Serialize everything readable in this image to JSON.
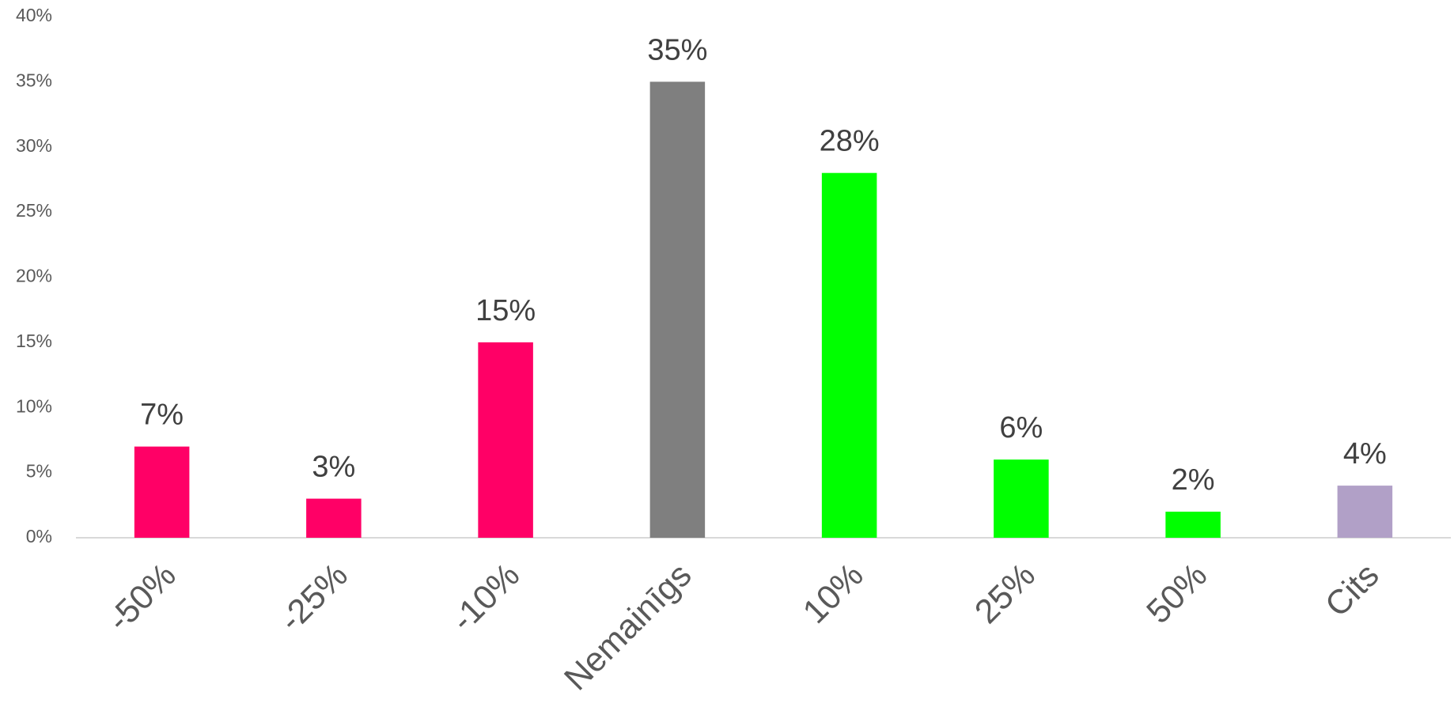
{
  "chart_data": {
    "type": "bar",
    "categories": [
      "-50%",
      "-25%",
      "-10%",
      "Nemainīgs",
      "10%",
      "25%",
      "50%",
      "Cits"
    ],
    "values": [
      7,
      3,
      15,
      35,
      28,
      6,
      2,
      4
    ],
    "value_labels": [
      "7%",
      "3%",
      "15%",
      "35%",
      "28%",
      "6%",
      "2%",
      "4%"
    ],
    "colors": [
      "#ff0066",
      "#ff0066",
      "#ff0066",
      "#7f7f7f",
      "#00ff00",
      "#00ff00",
      "#00ff00",
      "#b1a0c7"
    ],
    "ylim": [
      0,
      40
    ],
    "yticks": [
      {
        "value": 0,
        "label": "0%"
      },
      {
        "value": 5,
        "label": "5%"
      },
      {
        "value": 10,
        "label": "10%"
      },
      {
        "value": 15,
        "label": "15%"
      },
      {
        "value": 20,
        "label": "20%"
      },
      {
        "value": 25,
        "label": "25%"
      },
      {
        "value": 30,
        "label": "30%"
      },
      {
        "value": 35,
        "label": "35%"
      },
      {
        "value": 40,
        "label": "40%"
      }
    ],
    "grid": false
  }
}
